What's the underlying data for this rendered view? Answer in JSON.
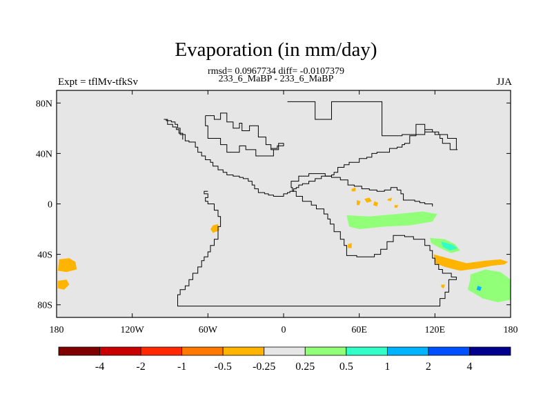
{
  "chart_data": {
    "type": "heatmap",
    "title": "Evaporation (in mm/day)",
    "stats_line": "rmsd= 0.0967734 diff= -0.0107379",
    "comparison": "233_6_MaBP - 233_6_MaBP",
    "left_label": "Expt = tflMv-tfkSv",
    "right_label": "JJA",
    "x_range": [
      -180,
      180
    ],
    "y_range": [
      -90,
      90
    ],
    "x_ticks": [
      {
        "value": -180,
        "label": "180"
      },
      {
        "value": -120,
        "label": "120W"
      },
      {
        "value": -60,
        "label": "60W"
      },
      {
        "value": 0,
        "label": "0"
      },
      {
        "value": 60,
        "label": "60E"
      },
      {
        "value": 120,
        "label": "120E"
      },
      {
        "value": 180,
        "label": "180"
      }
    ],
    "y_ticks": [
      {
        "value": 80,
        "label": "80N"
      },
      {
        "value": 40,
        "label": "40N"
      },
      {
        "value": 0,
        "label": "0"
      },
      {
        "value": -40,
        "label": "40S"
      },
      {
        "value": -80,
        "label": "80S"
      }
    ],
    "colorbar": {
      "colors": [
        "#7f0000",
        "#c80000",
        "#ff2800",
        "#ff7800",
        "#ffb400",
        "#e6e6e6",
        "#91ff78",
        "#32ffc8",
        "#00b4ff",
        "#0050ff",
        "#00008c"
      ],
      "labels": [
        "-4",
        "-2",
        "-1",
        "-0.5",
        "-0.25",
        "0.25",
        "0.5",
        "1",
        "2",
        "4"
      ]
    },
    "anomalies": [
      {
        "level": "-0.25",
        "color": "#ffb400",
        "points": [
          [
            -178,
            -44
          ],
          [
            -170,
            -43
          ],
          [
            -165,
            -46
          ],
          [
            -164,
            -52
          ],
          [
            -172,
            -54
          ],
          [
            -179,
            -53
          ]
        ]
      },
      {
        "level": "-0.25",
        "color": "#ffb400",
        "points": [
          [
            -179,
            -61
          ],
          [
            -172,
            -60
          ],
          [
            -170,
            -64
          ],
          [
            -174,
            -68
          ],
          [
            -179,
            -67
          ]
        ]
      },
      {
        "level": "-0.25",
        "color": "#ffb400",
        "points": [
          [
            -56,
            -17
          ],
          [
            -52,
            -16
          ],
          [
            -51,
            -21
          ],
          [
            -56,
            -23
          ],
          [
            -58,
            -20
          ]
        ]
      },
      {
        "level": "-0.25",
        "color": "#ffb400",
        "points": [
          [
            119,
            -40
          ],
          [
            130,
            -43
          ],
          [
            145,
            -47
          ],
          [
            160,
            -45
          ],
          [
            172,
            -44
          ],
          [
            178,
            -46
          ],
          [
            175,
            -48
          ],
          [
            165,
            -49
          ],
          [
            155,
            -51
          ],
          [
            140,
            -53
          ],
          [
            128,
            -50
          ],
          [
            120,
            -47
          ]
        ]
      },
      {
        "level": "-0.25",
        "color": "#ffb400",
        "points": [
          [
            51,
            -32
          ],
          [
            54,
            -31
          ],
          [
            54,
            -35
          ],
          [
            51,
            -35
          ]
        ]
      },
      {
        "level": "-0.25",
        "color": "#ffb400",
        "points": [
          [
            58,
            3
          ],
          [
            61,
            2
          ],
          [
            60,
            -1
          ],
          [
            58,
            -1
          ]
        ]
      },
      {
        "level": "-0.25",
        "color": "#ffb400",
        "points": [
          [
            64,
            4
          ],
          [
            68,
            5
          ],
          [
            70,
            2
          ],
          [
            66,
            1
          ]
        ]
      },
      {
        "level": "-0.25",
        "color": "#ffb400",
        "points": [
          [
            54,
            12
          ],
          [
            57,
            13
          ],
          [
            57,
            10
          ],
          [
            54,
            10
          ]
        ]
      },
      {
        "level": "-0.25",
        "color": "#ffb400",
        "points": [
          [
            72,
            2
          ],
          [
            75,
            1
          ],
          [
            74,
            -2
          ],
          [
            71,
            -1
          ]
        ]
      },
      {
        "level": "-0.25",
        "color": "#ffb400",
        "points": [
          [
            83,
            4
          ],
          [
            86,
            5
          ],
          [
            85,
            2
          ],
          [
            82,
            3
          ]
        ]
      },
      {
        "level": "-0.25",
        "color": "#ffb400",
        "points": [
          [
            88,
            -1
          ],
          [
            91,
            -1
          ],
          [
            90,
            -3
          ],
          [
            88,
            -3
          ]
        ]
      },
      {
        "level": "-0.25",
        "color": "#ffb400",
        "points": [
          [
            125,
            -64
          ],
          [
            128,
            -64
          ],
          [
            127,
            -67
          ],
          [
            125,
            -66
          ]
        ]
      },
      {
        "level": "0.25",
        "color": "#91ff78",
        "points": [
          [
            50,
            -9
          ],
          [
            68,
            -10
          ],
          [
            90,
            -8
          ],
          [
            110,
            -6
          ],
          [
            122,
            -8
          ],
          [
            118,
            -14
          ],
          [
            100,
            -17
          ],
          [
            80,
            -18
          ],
          [
            60,
            -20
          ],
          [
            52,
            -18
          ]
        ]
      },
      {
        "level": "0.25",
        "color": "#91ff78",
        "points": [
          [
            116,
            -27
          ],
          [
            128,
            -28
          ],
          [
            136,
            -32
          ],
          [
            140,
            -37
          ],
          [
            133,
            -39
          ],
          [
            124,
            -35
          ],
          [
            117,
            -31
          ]
        ]
      },
      {
        "level": "0.25",
        "color": "#91ff78",
        "points": [
          [
            148,
            -56
          ],
          [
            160,
            -52
          ],
          [
            172,
            -54
          ],
          [
            180,
            -60
          ],
          [
            180,
            -76
          ],
          [
            170,
            -78
          ],
          [
            158,
            -75
          ],
          [
            146,
            -68
          ],
          [
            148,
            -60
          ]
        ]
      },
      {
        "level": "0.5",
        "color": "#32ffc8",
        "points": [
          [
            125,
            -30
          ],
          [
            133,
            -32
          ],
          [
            138,
            -35
          ],
          [
            132,
            -37
          ],
          [
            126,
            -34
          ]
        ]
      },
      {
        "level": "1",
        "color": "#00b4ff",
        "points": [
          [
            154,
            -65
          ],
          [
            157,
            -66
          ],
          [
            156,
            -69
          ],
          [
            153,
            -68
          ]
        ]
      }
    ],
    "coastlines": [
      [
        [
          3,
          81
        ],
        [
          25,
          81
        ],
        [
          25,
          67
        ],
        [
          38,
          67
        ],
        [
          38,
          81
        ],
        [
          56,
          81
        ],
        [
          78,
          81
        ],
        [
          78,
          54
        ],
        [
          88,
          54
        ],
        [
          94,
          55
        ],
        [
          112,
          59
        ],
        [
          118,
          57
        ],
        [
          123,
          55
        ],
        [
          124,
          52
        ],
        [
          126,
          48
        ],
        [
          132,
          43
        ],
        [
          138,
          43
        ],
        [
          137,
          52
        ],
        [
          130,
          55
        ],
        [
          120,
          57
        ],
        [
          112,
          63
        ],
        [
          105,
          54
        ],
        [
          100,
          48
        ],
        [
          96,
          47
        ],
        [
          94,
          45
        ],
        [
          90,
          44
        ],
        [
          84,
          41
        ],
        [
          74,
          40
        ],
        [
          70,
          37
        ],
        [
          66,
          36
        ],
        [
          60,
          33
        ],
        [
          55,
          33
        ],
        [
          52,
          31
        ],
        [
          48,
          29
        ],
        [
          43,
          25
        ],
        [
          40,
          23
        ],
        [
          38,
          22
        ],
        [
          35,
          22
        ],
        [
          30,
          20
        ],
        [
          25,
          18
        ],
        [
          20,
          16
        ],
        [
          15,
          15
        ],
        [
          12,
          13
        ],
        [
          10,
          12
        ],
        [
          8,
          10
        ],
        [
          5,
          9
        ],
        [
          3,
          8
        ],
        [
          0,
          6
        ],
        [
          -3,
          6
        ],
        [
          -8,
          7
        ],
        [
          -12,
          8
        ],
        [
          -15,
          9
        ],
        [
          -20,
          12
        ],
        [
          -23,
          15
        ],
        [
          -25,
          18
        ],
        [
          -28,
          20
        ],
        [
          -32,
          21
        ],
        [
          -35,
          22
        ],
        [
          -37,
          22
        ],
        [
          -40,
          23
        ],
        [
          -45,
          25
        ],
        [
          -48,
          27
        ],
        [
          -52,
          30
        ],
        [
          -56,
          33
        ],
        [
          -58,
          35
        ],
        [
          -62,
          38
        ],
        [
          -65,
          41
        ],
        [
          -68,
          45
        ],
        [
          -70,
          49
        ],
        [
          -75,
          50
        ],
        [
          -78,
          55
        ],
        [
          -82,
          60
        ],
        [
          -84,
          63
        ],
        [
          -86,
          65
        ],
        [
          -89,
          66
        ],
        [
          -93,
          67
        ],
        [
          -95,
          67
        ],
        [
          -92,
          63
        ],
        [
          -88,
          61
        ],
        [
          -85,
          59
        ],
        [
          -83,
          56
        ],
        [
          -80,
          51
        ]
      ],
      [
        [
          -60,
          10
        ],
        [
          -63,
          8
        ],
        [
          -60,
          5
        ],
        [
          -62,
          2
        ],
        [
          -60,
          0
        ],
        [
          -55,
          -5
        ],
        [
          -52,
          -10
        ],
        [
          -50,
          -14
        ],
        [
          -50,
          -18
        ],
        [
          -52,
          -21
        ],
        [
          -52,
          -28
        ],
        [
          -55,
          -33
        ],
        [
          -58,
          -38
        ],
        [
          -60,
          -42
        ],
        [
          -63,
          -45
        ],
        [
          -65,
          -50
        ],
        [
          -68,
          -55
        ],
        [
          -72,
          -60
        ],
        [
          -75,
          -65
        ],
        [
          -78,
          -68
        ],
        [
          -82,
          -72
        ],
        [
          -84,
          -78
        ],
        [
          -84,
          -81
        ],
        [
          120,
          -81
        ],
        [
          124,
          -75
        ],
        [
          128,
          -70
        ],
        [
          131,
          -60
        ],
        [
          137,
          -58
        ],
        [
          133,
          -55
        ],
        [
          126,
          -52
        ],
        [
          123,
          -48
        ],
        [
          120,
          -43
        ],
        [
          118,
          -37
        ],
        [
          116,
          -33
        ],
        [
          112,
          -28
        ],
        [
          103,
          -26
        ],
        [
          96,
          -25
        ],
        [
          87,
          -30
        ],
        [
          82,
          -36
        ],
        [
          77,
          -40
        ],
        [
          72,
          -42
        ],
        [
          65,
          -42
        ],
        [
          58,
          -41
        ],
        [
          50,
          -41
        ],
        [
          50,
          -33
        ],
        [
          48,
          -28
        ],
        [
          45,
          -22
        ],
        [
          40,
          -16
        ],
        [
          37,
          -12
        ],
        [
          35,
          -8
        ],
        [
          32,
          -4
        ],
        [
          26,
          -1
        ],
        [
          22,
          2
        ],
        [
          15,
          6
        ],
        [
          10,
          10
        ],
        [
          7,
          13
        ],
        [
          6,
          18
        ],
        [
          12,
          22
        ],
        [
          20,
          24
        ],
        [
          28,
          24
        ],
        [
          33,
          22
        ],
        [
          38,
          21
        ],
        [
          45,
          19
        ],
        [
          51,
          15
        ],
        [
          56,
          14
        ],
        [
          62,
          12
        ],
        [
          68,
          11
        ],
        [
          74,
          10
        ],
        [
          80,
          11
        ],
        [
          85,
          13
        ],
        [
          90,
          11
        ],
        [
          93,
          8
        ],
        [
          95,
          3
        ],
        [
          100,
          3
        ],
        [
          104,
          2
        ],
        [
          108,
          1
        ],
        [
          112,
          0
        ],
        [
          118,
          -2
        ]
      ],
      [
        [
          -62,
          70
        ],
        [
          -55,
          70
        ],
        [
          -55,
          67
        ],
        [
          -50,
          67
        ],
        [
          -50,
          72
        ],
        [
          -45,
          72
        ],
        [
          -45,
          65
        ],
        [
          -40,
          65
        ],
        [
          -40,
          60
        ],
        [
          -35,
          60
        ],
        [
          -35,
          64
        ],
        [
          -33,
          64
        ],
        [
          -33,
          58
        ],
        [
          -27,
          58
        ],
        [
          -27,
          62
        ],
        [
          -20,
          62
        ],
        [
          -20,
          53
        ],
        [
          -14,
          53
        ],
        [
          -14,
          47
        ],
        [
          -10,
          47
        ],
        [
          -10,
          43
        ],
        [
          -4,
          43
        ],
        [
          -4,
          48
        ],
        [
          0,
          48
        ],
        [
          0,
          46
        ],
        [
          -5,
          44
        ],
        [
          -10,
          43
        ],
        [
          -8,
          38
        ],
        [
          -18,
          38
        ],
        [
          -22,
          43
        ],
        [
          -27,
          43
        ],
        [
          -30,
          46
        ],
        [
          -35,
          46
        ],
        [
          -35,
          41
        ],
        [
          -42,
          41
        ],
        [
          -45,
          47
        ],
        [
          -50,
          52
        ],
        [
          -60,
          55
        ],
        [
          -60,
          62
        ],
        [
          -62,
          70
        ]
      ]
    ]
  }
}
